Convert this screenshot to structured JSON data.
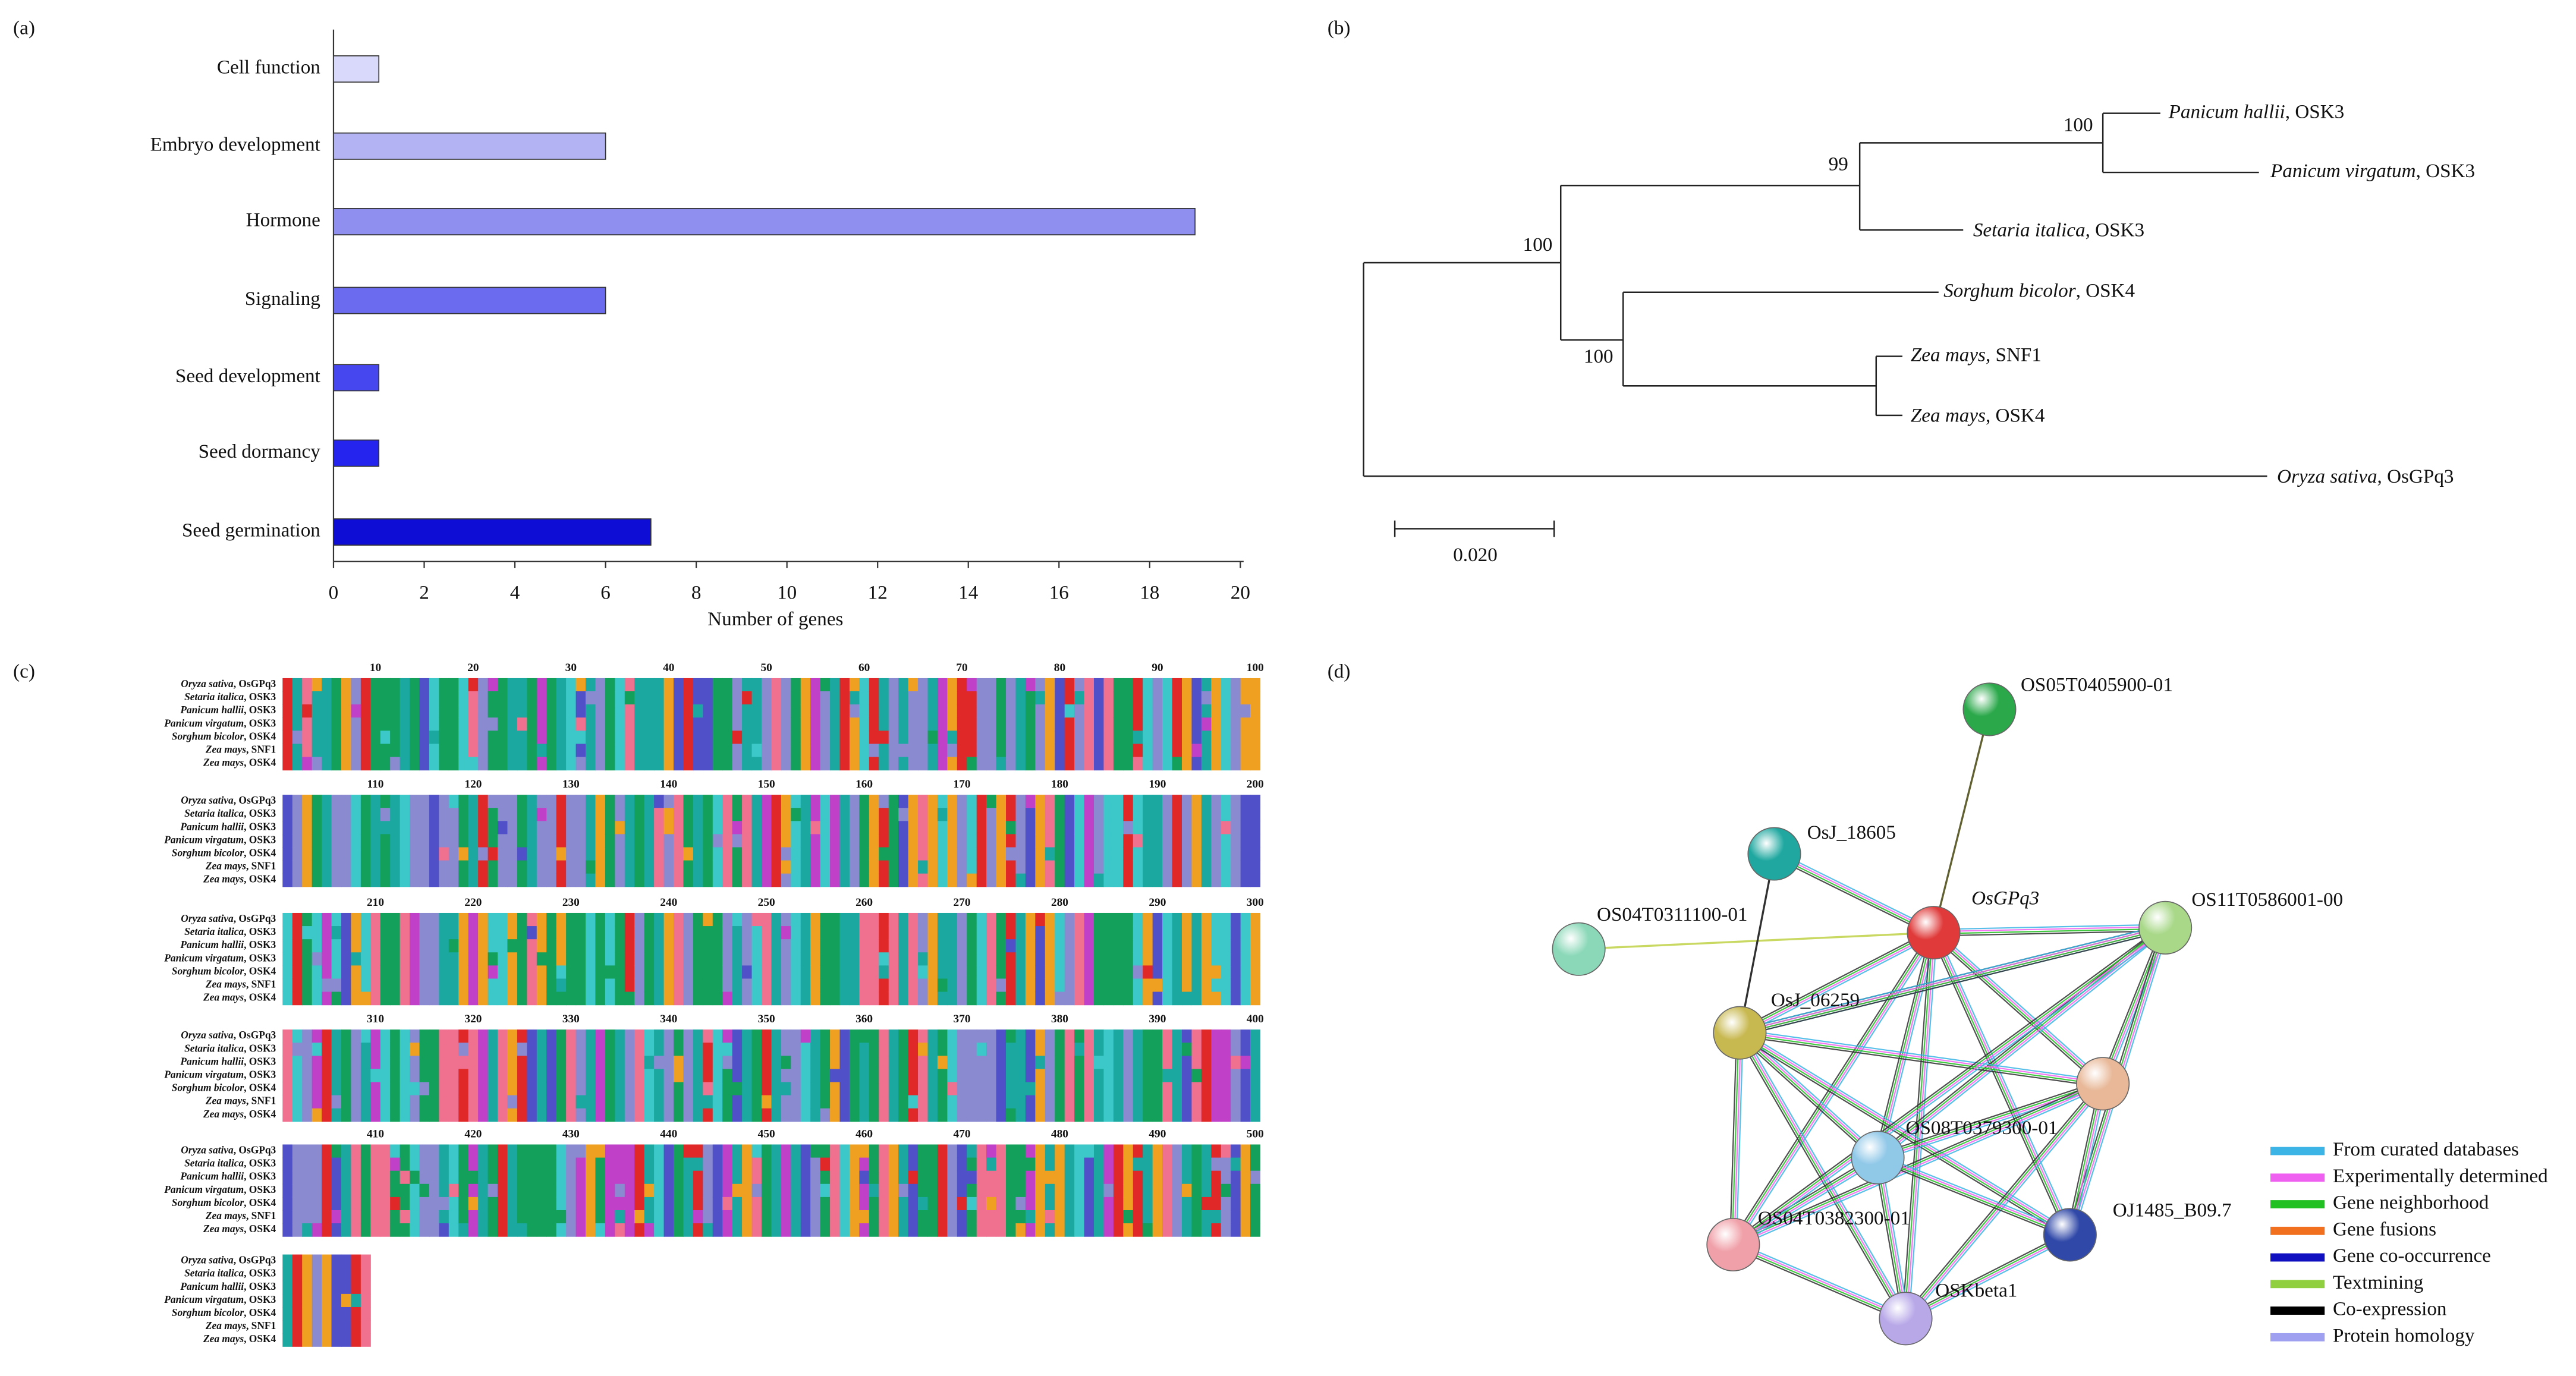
{
  "chart_data": {
    "type": "bar",
    "panel_label": "(a)",
    "orientation": "horizontal",
    "categories": [
      "Cell function",
      "Embryo development",
      "Hormone",
      "Signaling",
      "Seed development",
      "Seed dormancy",
      "Seed germination"
    ],
    "values": [
      1,
      6,
      19,
      6,
      1,
      1,
      7
    ],
    "colors": [
      "#d9d9fb",
      "#b3b3f3",
      "#8f8ff0",
      "#6b6bef",
      "#4747f0",
      "#2424ee",
      "#0d0dd6"
    ],
    "xlabel": "Number of genes",
    "xlim": [
      0,
      20
    ],
    "xticks": [
      0,
      2,
      4,
      6,
      8,
      10,
      12,
      14,
      16,
      18,
      20
    ],
    "grid": false
  },
  "tree": {
    "panel_label": "(b)",
    "leaves": [
      "Panicum hallii, OSK3",
      "Panicum virgatum, OSK3",
      "Setaria italica, OSK3",
      "Sorghum bicolor, OSK4",
      "Zea mays, SNF1",
      "Zea mays, OSK4",
      "Oryza sativa, OsGPq3"
    ],
    "bootstrap": [
      "100",
      "99",
      "100",
      "100"
    ],
    "scale_label": "0.020"
  },
  "alignment": {
    "panel_label": "(c)",
    "species": [
      "Oryza sativa, OsGPq3",
      "Setaria italica, OSK3",
      "Panicum hallii, OSK3",
      "Panicum virgatum, OSK3",
      "Sorghum bicolor, OSK4",
      "Zea mays, SNF1",
      "Zea mays, OSK4"
    ],
    "positions": [
      "10",
      "20",
      "30",
      "40",
      "50",
      "60",
      "70",
      "80",
      "90",
      "100",
      "110",
      "120",
      "130",
      "140",
      "150",
      "160",
      "170",
      "180",
      "190",
      "200",
      "210",
      "220",
      "230",
      "240",
      "250",
      "260",
      "270",
      "280",
      "290",
      "300",
      "310",
      "320",
      "330",
      "340",
      "350",
      "360",
      "370",
      "380",
      "390",
      "400",
      "410",
      "420",
      "430",
      "440",
      "450",
      "460",
      "470",
      "480",
      "490",
      "500"
    ]
  },
  "network": {
    "panel_label": "(d)",
    "nodes": [
      "OS05T0405900-01",
      "OsJ_18605",
      "OsGPq3",
      "OS11T0586001-00",
      "OS04T0311100-01",
      "OsJ_06259",
      null,
      "OS08T0379300-01",
      "OJ1485_B09.7",
      "OS04T0382300-01",
      "OSKbeta1"
    ],
    "legend": [
      {
        "label": "From curated databases",
        "color": "#3cb4e6"
      },
      {
        "label": "Experimentally determined",
        "color": "#f060f0"
      },
      {
        "label": "Gene neighborhood",
        "color": "#22c022"
      },
      {
        "label": "Gene fusions",
        "color": "#f07020"
      },
      {
        "label": "Gene co-occurrence",
        "color": "#1010c0"
      },
      {
        "label": "Textmining",
        "color": "#90d040"
      },
      {
        "label": "Co-expression",
        "color": "#000000"
      },
      {
        "label": "Protein homology",
        "color": "#a0a0f0"
      }
    ]
  }
}
